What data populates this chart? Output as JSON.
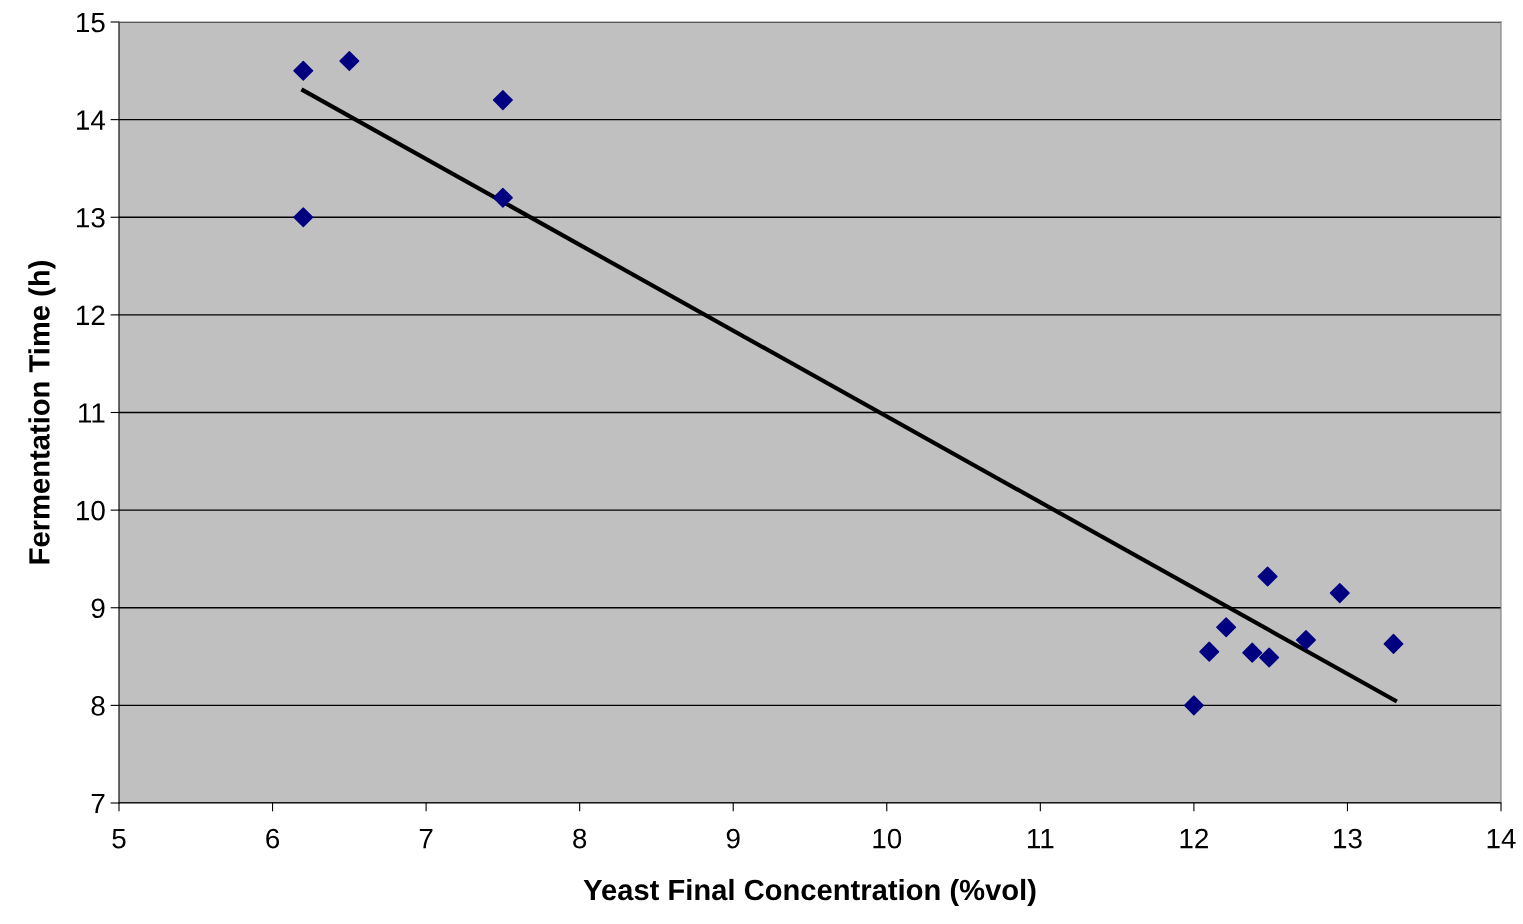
{
  "chart_data": {
    "type": "scatter",
    "xlabel": "Yeast Final Concentration (%vol)",
    "ylabel": "Fermentation Time (h)",
    "xlim": [
      5,
      14
    ],
    "xticks": [
      5,
      6,
      7,
      8,
      9,
      10,
      11,
      12,
      13,
      14
    ],
    "ylim": [
      7,
      15
    ],
    "yticks": [
      7,
      8,
      9,
      10,
      11,
      12,
      13,
      14,
      15
    ],
    "grid": "y",
    "legend": false,
    "series": [
      {
        "marker": "diamond",
        "color": "#000080",
        "x": [
          6.2,
          6.5,
          7.5,
          7.5,
          6.2,
          12.0,
          12.1,
          12.21,
          12.38,
          12.48,
          12.49,
          12.73,
          12.95,
          13.3
        ],
        "values": [
          14.5,
          14.6,
          14.2,
          13.2,
          13.0,
          8.0,
          8.55,
          8.8,
          8.54,
          9.32,
          8.49,
          8.67,
          9.15,
          8.63
        ]
      },
      {
        "type": "line",
        "marker": "none",
        "color": "#000000",
        "x": [
          6.2,
          13.31
        ],
        "values": [
          14.3,
          8.05
        ]
      }
    ]
  }
}
